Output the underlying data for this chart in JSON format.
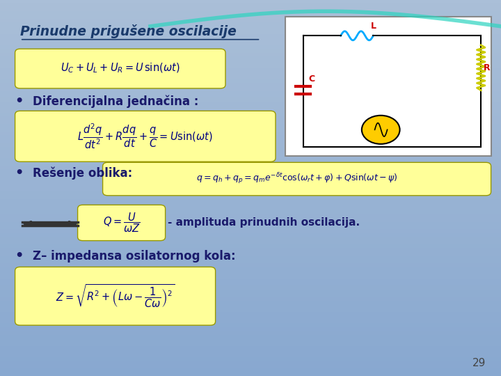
{
  "background_color_top": "#b0c4de",
  "background_color_bottom": "#8ab0d0",
  "slide_bg": "#aabfd8",
  "title_text": "Prinudne prigušene oscilacije",
  "title_color": "#1a3a6b",
  "title_underline": true,
  "title_italic": true,
  "bullet_color": "#1a1a6b",
  "formula_bg": "#ffff99",
  "formula_border": "#cccc00",
  "page_number": "29",
  "bullet1_formula": "$U_C + U_L + U_R = U\\,\\sin(\\omega t)$",
  "bullet2_text": "Diferencijalna jednačina :",
  "bullet2_formula": "$L\\dfrac{d^2q}{dt^2} + R\\dfrac{dq}{dt} + \\dfrac{q}{C} = U\\sin(\\omega t)$",
  "bullet3_text": "Rešenje oblika:",
  "bullet3_formula": "$q = q_h + q_p = q_m e^{-\\delta t}\\cos(\\omega_r t + \\varphi) + Q\\sin(\\omega t - \\psi)$",
  "arrow_formula": "$Q = \\dfrac{U}{\\omega Z}$",
  "arrow_text": "- amplituda prinudnih oscilacija.",
  "bullet4_text": "Z– impedansa osilatornog kola:",
  "bullet4_formula": "$Z = \\sqrt{R^2 + \\left(L\\omega - \\dfrac{1}{C\\omega}\\right)^2}$"
}
